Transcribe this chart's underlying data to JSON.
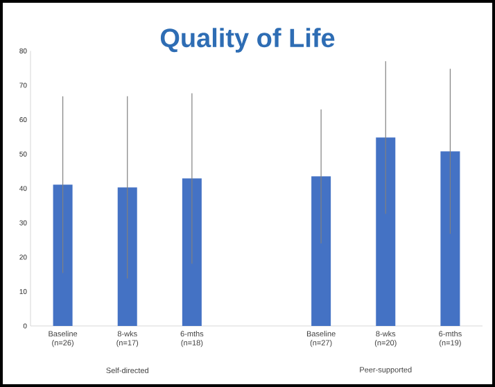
{
  "chart_data": {
    "type": "bar",
    "title": "Quality of Life",
    "categories": [
      "Baseline (n=26)",
      "8-wks (n=17)",
      "6-mths (n=18)",
      null,
      "Baseline (n=27)",
      "8-wks (n=20)",
      "6-mths (n=19)"
    ],
    "values": [
      41.1,
      40.3,
      42.9,
      null,
      43.5,
      54.8,
      50.8
    ],
    "errors": [
      25.7,
      26.5,
      24.8,
      null,
      19.5,
      22.2,
      24.0
    ],
    "color": "#4472c4",
    "ylim": [
      0,
      80
    ],
    "yticks": [
      0,
      10,
      20,
      30,
      40,
      50,
      60,
      70,
      80
    ],
    "annotations": [
      "Self-directed",
      "Peer-supported"
    ],
    "grid": false
  }
}
